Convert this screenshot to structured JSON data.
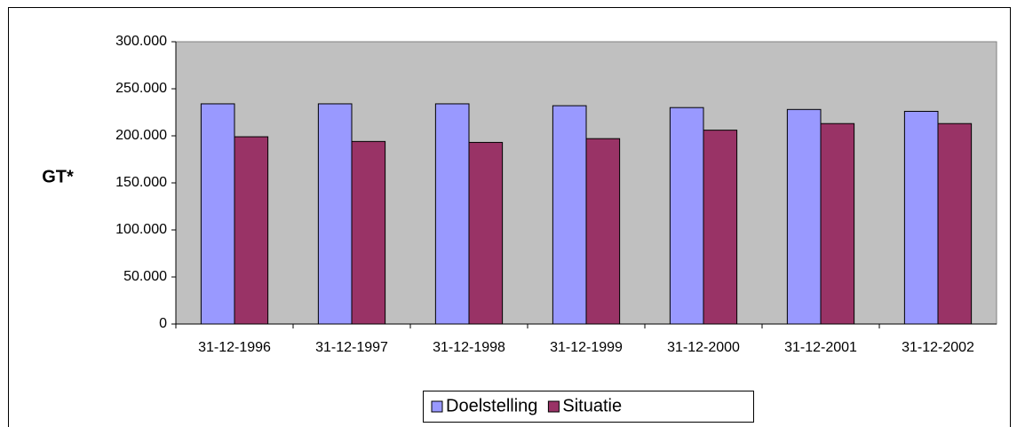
{
  "chart_data": {
    "type": "bar",
    "y_label": "GT*",
    "categories": [
      "31-12-1996",
      "31-12-1997",
      "31-12-1998",
      "31-12-1999",
      "31-12-2000",
      "31-12-2001",
      "31-12-2002"
    ],
    "series": [
      {
        "name": "Doelstelling",
        "color": "#9999ff",
        "values": [
          234000,
          234000,
          234000,
          232000,
          230000,
          228000,
          226000
        ]
      },
      {
        "name": "Situatie",
        "color": "#993366",
        "values": [
          199000,
          194000,
          193000,
          197000,
          206000,
          213000,
          213000
        ]
      }
    ],
    "ylim": [
      0,
      300000
    ],
    "yticks": [
      0,
      {
        "value": 50000,
        "label": "50.000"
      },
      {
        "value": 100000,
        "label": "100.000"
      },
      {
        "value": 150000,
        "label": "150.000"
      },
      {
        "value": 200000,
        "label": "200.000"
      },
      {
        "value": 250000,
        "label": "250.000"
      },
      {
        "value": 300000,
        "label": "300.000"
      }
    ],
    "grid": false,
    "legend": "bottom",
    "plot_background": "#c0c0c0"
  }
}
